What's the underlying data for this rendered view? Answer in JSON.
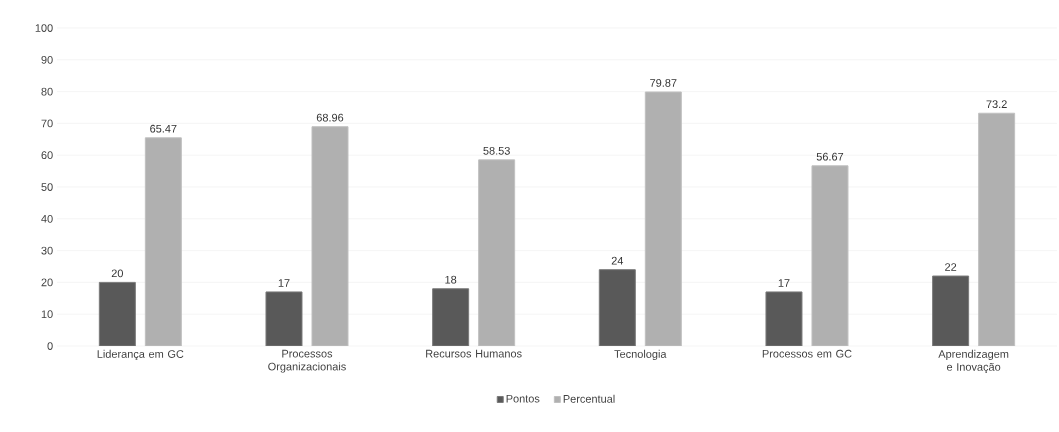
{
  "chart_data": {
    "type": "bar",
    "categories": [
      "Liderança em GC",
      "Processos Organizacionais",
      "Recursos Humanos",
      "Tecnologia",
      "Processos em GC",
      "Aprendizagem e Inovação"
    ],
    "series": [
      {
        "name": "Pontos",
        "color": "#595959",
        "values": [
          20,
          17,
          18,
          24,
          17,
          22
        ]
      },
      {
        "name": "Percentual",
        "color": "#b0b0b0",
        "values": [
          65.47,
          68.96,
          58.53,
          79.87,
          56.67,
          73.2
        ]
      }
    ],
    "ylim": [
      0,
      100
    ],
    "yticks": [
      0,
      10,
      20,
      30,
      40,
      50,
      60,
      70,
      80,
      90,
      100
    ],
    "grid": "y",
    "legend": "bottom",
    "data_labels": true
  }
}
